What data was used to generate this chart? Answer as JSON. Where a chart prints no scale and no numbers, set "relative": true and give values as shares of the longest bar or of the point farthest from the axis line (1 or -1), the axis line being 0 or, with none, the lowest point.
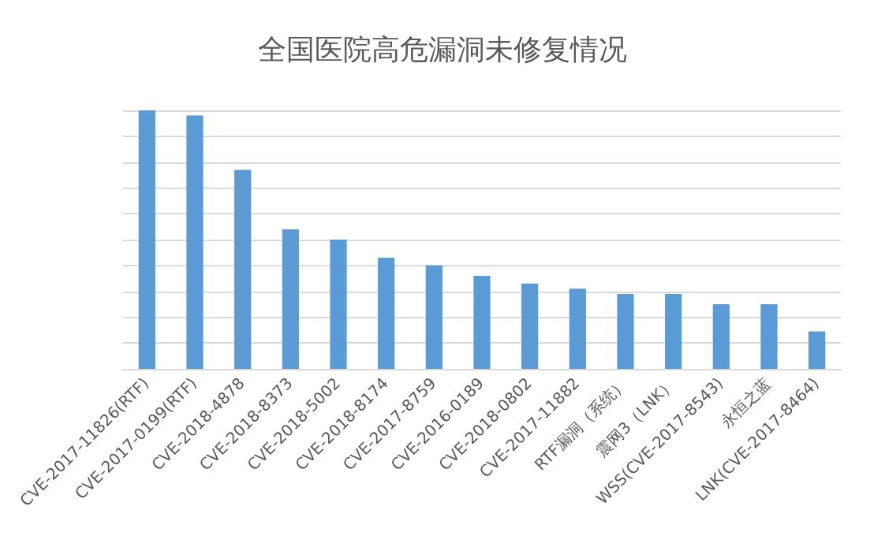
{
  "chart_data": {
    "type": "bar",
    "title": "全国医院高危漏洞未修复情况",
    "relative": true,
    "grid": "y",
    "color": "#5b9bd5",
    "categories": [
      "CVE-2017-11826(RTF)",
      "CVE-2017-0199(RTF)",
      "CVE-2018-4878",
      "CVE-2018-8373",
      "CVE-2018-5002",
      "CVE-2018-8174",
      "CVE-2017-8759",
      "CVE-2016-0189",
      "CVE-2018-0802",
      "CVE-2017-11882",
      "RTF漏洞（系统）",
      "震网3（LNK）",
      "WSS(CVE-2017-8543)",
      "永恒之蓝",
      "LNK(CVE-2017-8464)"
    ],
    "values": [
      1,
      0.98,
      0.77,
      0.54,
      0.5,
      0.43,
      0.4,
      0.36,
      0.33,
      0.31,
      0.29,
      0.29,
      0.25,
      0.25,
      0.145
    ]
  }
}
